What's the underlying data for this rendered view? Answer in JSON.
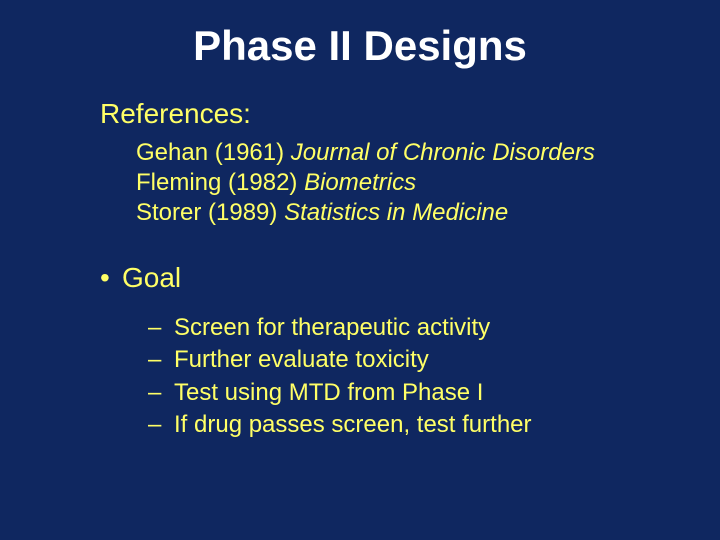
{
  "colors": {
    "background": "#0f2760",
    "title": "#ffffff",
    "body": "#ffff66"
  },
  "title": "Phase II Designs",
  "references_label": "References:",
  "refs": [
    {
      "author": "Gehan (1961) ",
      "journal": "Journal of Chronic Disorders"
    },
    {
      "author": "Fleming (1982) ",
      "journal": "Biometrics"
    },
    {
      "author": "Storer (1989) ",
      "journal": "Statistics in Medicine"
    }
  ],
  "goal_bullet": "•",
  "goal_label": "Goal",
  "dash": "–",
  "goals": [
    "Screen for therapeutic activity",
    "Further evaluate toxicity",
    "Test using MTD from Phase I",
    "If drug passes screen, test further"
  ]
}
